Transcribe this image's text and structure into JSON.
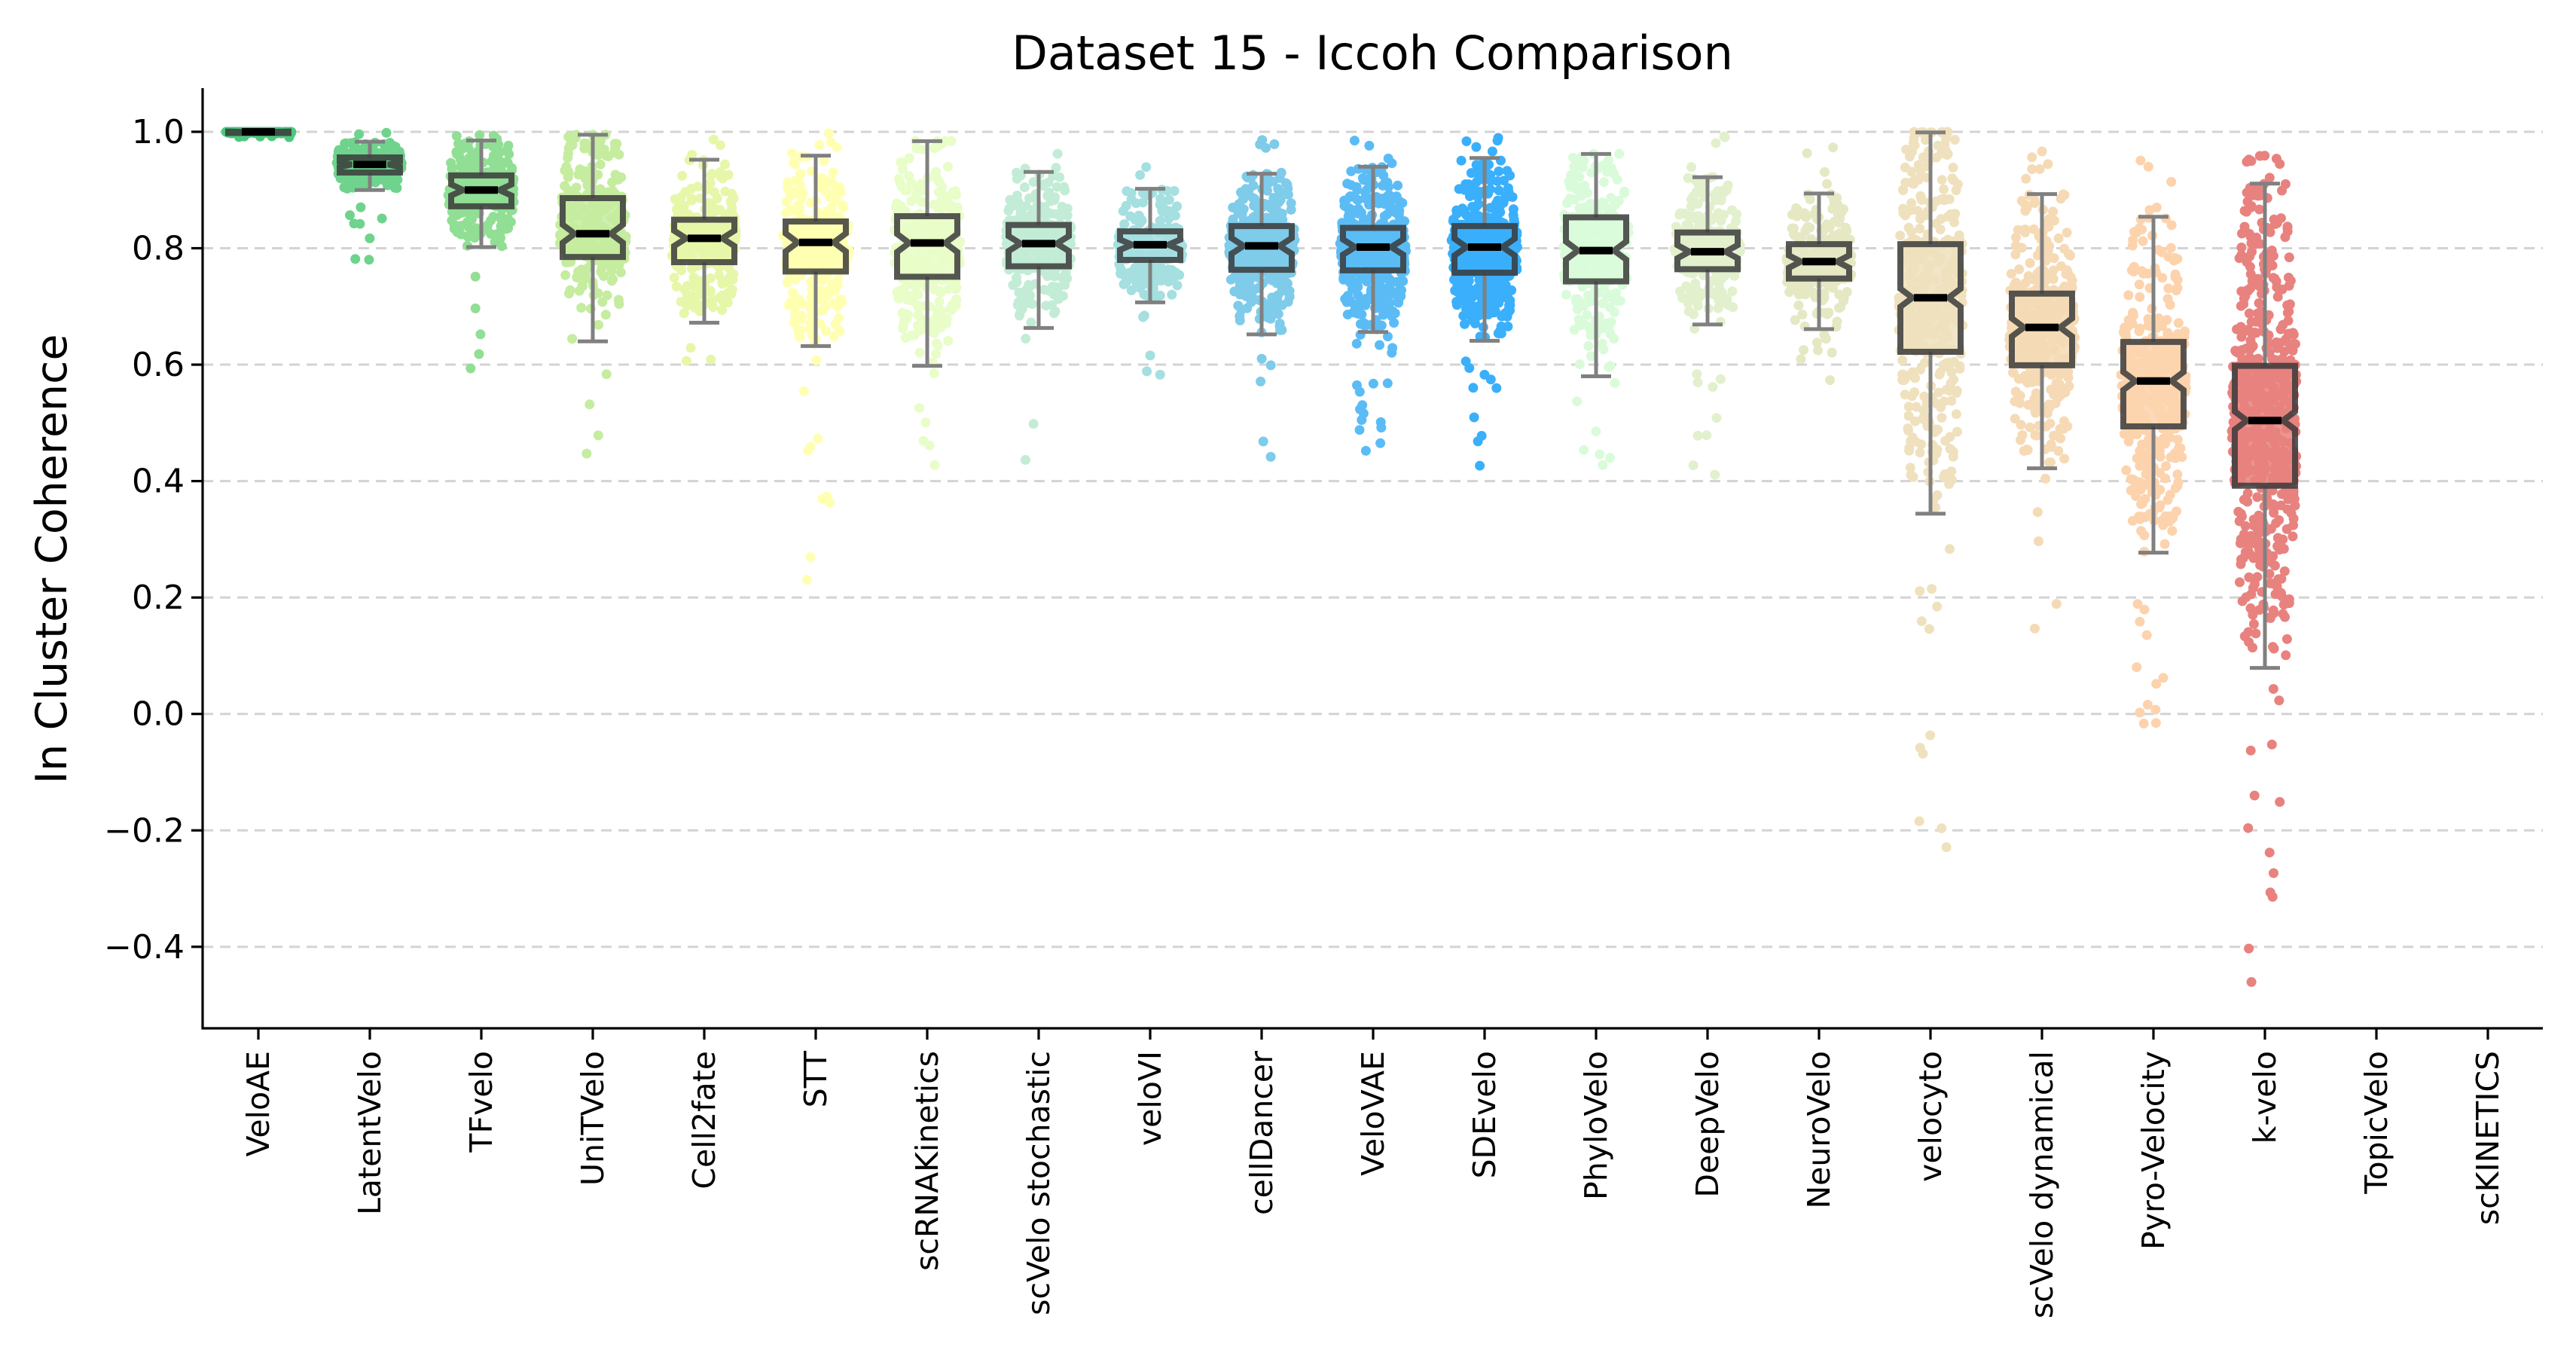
{
  "chart_data": {
    "type": "box",
    "subtype": "box-with-jittered-strip",
    "title": "Dataset 15 - Iccoh Comparison",
    "xlabel": "",
    "ylabel": "In Cluster Coherence",
    "ylim": [
      -0.54,
      1.075
    ],
    "yticks": [
      -0.4,
      -0.2,
      0.0,
      0.2,
      0.4,
      0.6,
      0.8,
      1.0
    ],
    "ytick_labels": [
      "−0.4",
      "−0.2",
      "0.0",
      "0.2",
      "0.4",
      "0.6",
      "0.8",
      "1.0"
    ],
    "grid": {
      "axis": "y",
      "style": "dashed",
      "color": "#d3d3d3"
    },
    "legend": "none",
    "categories": [
      "VeloAE",
      "LatentVelo",
      "TFvelo",
      "UniTVelo",
      "Cell2fate",
      "STT",
      "scRNAKinetics",
      "scVelo stochastic",
      "veloVI",
      "cellDancer",
      "VeloVAE",
      "SDEvelo",
      "PhyloVelo",
      "DeepVelo",
      "NeuroVelo",
      "velocyto",
      "scVelo dynamical",
      "Pyro-Velocity",
      "k-velo",
      "TopicVelo",
      "scKINETICS"
    ],
    "series": [
      {
        "name": "VeloAE",
        "color": "#4dc97f",
        "box": {
          "whislo": 0.997,
          "q1": 0.998,
          "median": 1.0,
          "q3": 1.0,
          "whishi": 1.0
        },
        "min": 0.99,
        "max": 1.0,
        "density": 0.5
      },
      {
        "name": "LatentVelo",
        "color": "#6fd38d",
        "box": {
          "whislo": 0.9,
          "q1": 0.93,
          "median": 0.944,
          "q3": 0.956,
          "whishi": 0.983
        },
        "min": 0.78,
        "max": 1.0,
        "density": 1.0
      },
      {
        "name": "TFvelo",
        "color": "#91de95",
        "box": {
          "whislo": 0.802,
          "q1": 0.872,
          "median": 0.9,
          "q3": 0.925,
          "whishi": 0.985
        },
        "min": 0.59,
        "max": 1.0,
        "density": 1.0
      },
      {
        "name": "UniTVelo",
        "color": "#c5ec9f",
        "box": {
          "whislo": 0.64,
          "q1": 0.785,
          "median": 0.825,
          "q3": 0.886,
          "whishi": 0.995
        },
        "min": 0.43,
        "max": 0.995,
        "density": 1.0
      },
      {
        "name": "Cell2fate",
        "color": "#e6f7a9",
        "box": {
          "whislo": 0.672,
          "q1": 0.776,
          "median": 0.817,
          "q3": 0.849,
          "whishi": 0.952
        },
        "min": 0.48,
        "max": 0.995,
        "density": 1.0
      },
      {
        "name": "STT",
        "color": "#ffffb2",
        "box": {
          "whislo": 0.632,
          "q1": 0.76,
          "median": 0.81,
          "q3": 0.846,
          "whishi": 0.959
        },
        "min": 0.12,
        "max": 1.0,
        "density": 1.1
      },
      {
        "name": "scRNAKinetics",
        "color": "#e8fdc8",
        "box": {
          "whislo": 0.598,
          "q1": 0.751,
          "median": 0.809,
          "q3": 0.855,
          "whishi": 0.984
        },
        "min": 0.42,
        "max": 0.984,
        "density": 1.0
      },
      {
        "name": "scVelo stochastic",
        "color": "#c3ecd6",
        "box": {
          "whislo": 0.663,
          "q1": 0.769,
          "median": 0.808,
          "q3": 0.84,
          "whishi": 0.931
        },
        "min": 0.37,
        "max": 0.985,
        "density": 1.0
      },
      {
        "name": "veloVI",
        "color": "#a5dfe0",
        "box": {
          "whislo": 0.707,
          "q1": 0.78,
          "median": 0.806,
          "q3": 0.829,
          "whishi": 0.902
        },
        "min": 0.58,
        "max": 0.95,
        "density": 0.9
      },
      {
        "name": "cellDancer",
        "color": "#7ecbea",
        "box": {
          "whislo": 0.652,
          "q1": 0.763,
          "median": 0.804,
          "q3": 0.838,
          "whishi": 0.928
        },
        "min": 0.35,
        "max": 0.99,
        "density": 1.3
      },
      {
        "name": "VeloVAE",
        "color": "#5bbcf5",
        "box": {
          "whislo": 0.656,
          "q1": 0.762,
          "median": 0.802,
          "q3": 0.835,
          "whishi": 0.94
        },
        "min": 0.45,
        "max": 0.99,
        "density": 1.5
      },
      {
        "name": "SDEvelo",
        "color": "#3aaffc",
        "box": {
          "whislo": 0.641,
          "q1": 0.758,
          "median": 0.802,
          "q3": 0.838,
          "whishi": 0.955
        },
        "min": 0.39,
        "max": 0.99,
        "density": 1.8
      },
      {
        "name": "PhyloVelo",
        "color": "#d9fbd9",
        "box": {
          "whislo": 0.58,
          "q1": 0.743,
          "median": 0.796,
          "q3": 0.853,
          "whishi": 0.962
        },
        "min": 0.42,
        "max": 0.962,
        "density": 1.0
      },
      {
        "name": "DeepVelo",
        "color": "#e2f0cd",
        "box": {
          "whislo": 0.669,
          "q1": 0.764,
          "median": 0.794,
          "q3": 0.827,
          "whishi": 0.922
        },
        "min": 0.4,
        "max": 1.0,
        "density": 1.0
      },
      {
        "name": "NeuroVelo",
        "color": "#e5e8c3",
        "box": {
          "whislo": 0.661,
          "q1": 0.748,
          "median": 0.777,
          "q3": 0.807,
          "whishi": 0.894
        },
        "min": 0.57,
        "max": 0.99,
        "density": 0.9
      },
      {
        "name": "velocyto",
        "color": "#efe1bd",
        "box": {
          "whislo": 0.344,
          "q1": 0.622,
          "median": 0.715,
          "q3": 0.807,
          "whishi": 0.999
        },
        "min": -0.28,
        "max": 1.0,
        "density": 1.5
      },
      {
        "name": "scVelo dynamical",
        "color": "#f5dab5",
        "box": {
          "whislo": 0.422,
          "q1": 0.599,
          "median": 0.664,
          "q3": 0.722,
          "whishi": 0.893
        },
        "min": 0.11,
        "max": 0.985,
        "density": 1.4
      },
      {
        "name": "Pyro-Velocity",
        "color": "#fcd3ad",
        "box": {
          "whislo": 0.277,
          "q1": 0.494,
          "median": 0.572,
          "q3": 0.639,
          "whishi": 0.854
        },
        "min": -0.02,
        "max": 0.97,
        "density": 1.6
      },
      {
        "name": "k-velo",
        "color": "#e8827f",
        "box": {
          "whislo": 0.079,
          "q1": 0.392,
          "median": 0.504,
          "q3": 0.598,
          "whishi": 0.911
        },
        "min": -0.47,
        "max": 0.98,
        "density": 2.2
      },
      {
        "name": "TopicVelo",
        "color": "#cccccc",
        "box": null,
        "min": null,
        "max": null,
        "density": 0
      },
      {
        "name": "scKINETICS",
        "color": "#cccccc",
        "box": null,
        "min": null,
        "max": null,
        "density": 0
      }
    ],
    "style": {
      "box_edge_color": "#3a3a3a",
      "whisker_color": "#808080",
      "median_color": "#000000",
      "notched": true
    }
  }
}
